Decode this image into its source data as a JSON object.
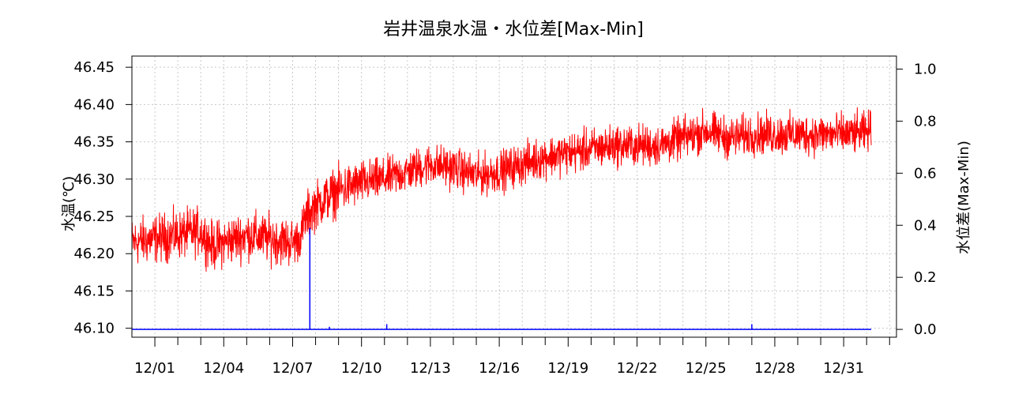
{
  "chart_data": {
    "type": "line",
    "title": "岩井温泉水温・水位差[Max-Min]",
    "ylabel_left": "水温(℃)",
    "ylabel_right": "水位差(Max-Min)",
    "xlabel": "",
    "grid": true,
    "y_left_range": [
      46.088,
      46.465
    ],
    "y_left_ticks": [
      "46.10",
      "46.15",
      "46.20",
      "46.25",
      "46.30",
      "46.35",
      "46.40",
      "46.45"
    ],
    "y_right_range": [
      -0.03,
      1.05
    ],
    "y_right_ticks": [
      "0.0",
      "0.2",
      "0.4",
      "0.6",
      "0.8",
      "1.0"
    ],
    "x_range_days": [
      0,
      33.3
    ],
    "x_ticks": [
      {
        "day": 1,
        "label": "12/01"
      },
      {
        "day": 4,
        "label": "12/04"
      },
      {
        "day": 7,
        "label": "12/07"
      },
      {
        "day": 10,
        "label": "12/10"
      },
      {
        "day": 13,
        "label": "12/13"
      },
      {
        "day": 16,
        "label": "12/16"
      },
      {
        "day": 19,
        "label": "12/19"
      },
      {
        "day": 22,
        "label": "12/22"
      },
      {
        "day": 25,
        "label": "12/25"
      },
      {
        "day": 28,
        "label": "12/28"
      },
      {
        "day": 31,
        "label": "12/31"
      }
    ],
    "series": [
      {
        "name": "水温",
        "color": "#ff0000",
        "axis": "left",
        "x_days": [
          0,
          1,
          2,
          3,
          3.5,
          4,
          5,
          6,
          7,
          7.3,
          7.6,
          8,
          8.5,
          9,
          10,
          11,
          12,
          13,
          14,
          15,
          16,
          17,
          18,
          19,
          20,
          21,
          22,
          23,
          24,
          25,
          26,
          27,
          28,
          29,
          30,
          31,
          32,
          32.2
        ],
        "mean": [
          46.215,
          46.22,
          46.225,
          46.23,
          46.21,
          46.215,
          46.225,
          46.22,
          46.215,
          46.22,
          46.25,
          46.265,
          46.275,
          46.285,
          46.295,
          46.3,
          46.31,
          46.32,
          46.315,
          46.305,
          46.31,
          46.32,
          46.33,
          46.335,
          46.34,
          46.345,
          46.345,
          46.345,
          46.355,
          46.365,
          46.355,
          46.36,
          46.36,
          46.36,
          46.36,
          46.36,
          46.362,
          46.37
        ],
        "band": [
          0.035,
          0.035,
          0.035,
          0.035,
          0.035,
          0.035,
          0.035,
          0.035,
          0.035,
          0.03,
          0.035,
          0.035,
          0.035,
          0.035,
          0.032,
          0.03,
          0.03,
          0.03,
          0.03,
          0.03,
          0.03,
          0.03,
          0.03,
          0.03,
          0.03,
          0.03,
          0.03,
          0.03,
          0.03,
          0.03,
          0.03,
          0.03,
          0.03,
          0.03,
          0.03,
          0.03,
          0.03,
          0.025
        ]
      },
      {
        "name": "水位差",
        "color": "#0000ff",
        "axis": "right",
        "baseline": 0.0,
        "x_end_day": 32.2,
        "spikes": [
          {
            "day": 7.75,
            "value": 0.39
          },
          {
            "day": 8.6,
            "value": 0.01
          },
          {
            "day": 11.1,
            "value": 0.02
          },
          {
            "day": 27.0,
            "value": 0.02
          }
        ]
      }
    ]
  }
}
